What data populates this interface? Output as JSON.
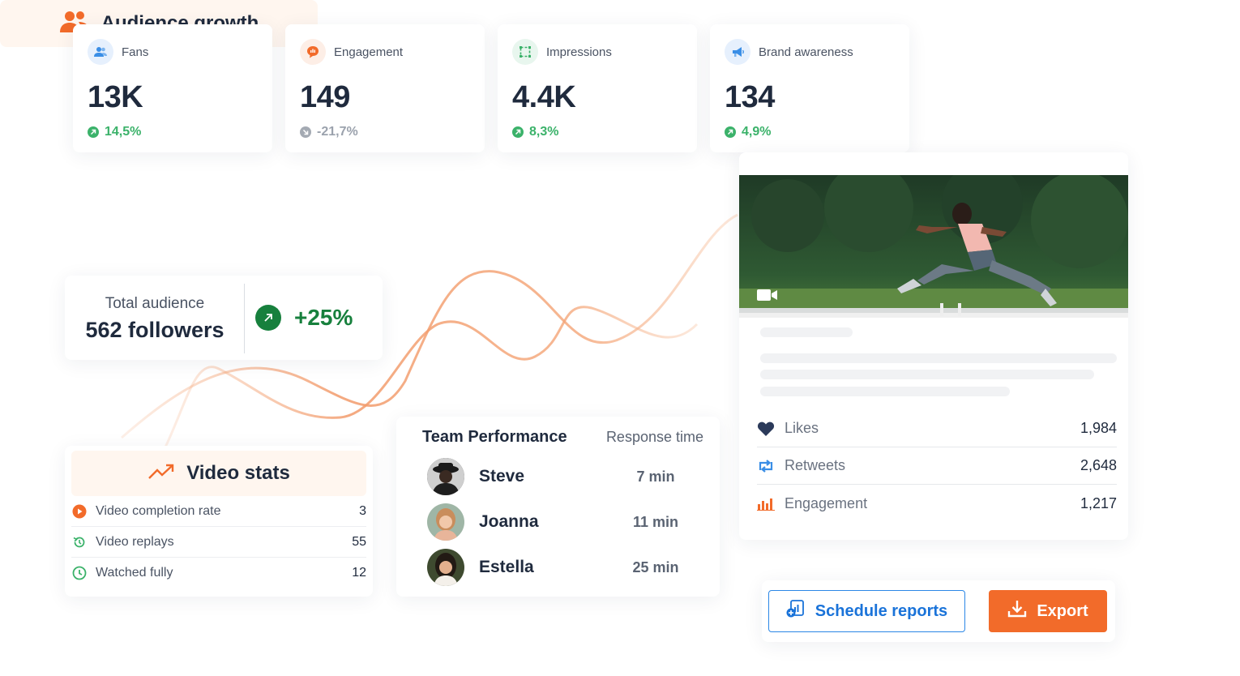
{
  "metrics": [
    {
      "label": "Fans",
      "value": "13K",
      "change": "14,5%",
      "trend": "up",
      "icon": "users-icon",
      "icon_bg": "#e6f0fd",
      "icon_color": "#3a8ee6"
    },
    {
      "label": "Engagement",
      "value": "149",
      "change": "-21,7%",
      "trend": "down",
      "icon": "chat-bubble-icon",
      "icon_bg": "#fdeee6",
      "icon_color": "#f26b2a"
    },
    {
      "label": "Impressions",
      "value": "4.4K",
      "change": "8,3%",
      "trend": "up",
      "icon": "frame-icon",
      "icon_bg": "#e8f6ee",
      "icon_color": "#3bb26a"
    },
    {
      "label": "Brand awareness",
      "value": "134",
      "change": "4,9%",
      "trend": "up",
      "icon": "megaphone-icon",
      "icon_bg": "#e6f0fd",
      "icon_color": "#3a8ee6"
    }
  ],
  "audience": {
    "title": "Audience growth",
    "total_label": "Total audience",
    "total_value": "562 followers",
    "growth": "+25%"
  },
  "video_stats": {
    "title": "Video stats",
    "rows": [
      {
        "label": "Video completion rate",
        "value": "3",
        "icon": "play-circle-icon"
      },
      {
        "label": "Video replays",
        "value": "55",
        "icon": "replay-icon"
      },
      {
        "label": "Watched fully",
        "value": "12",
        "icon": "clock-icon"
      }
    ]
  },
  "team": {
    "title": "Team Performance",
    "subtitle": "Response time",
    "members": [
      {
        "name": "Steve",
        "time": "7 min"
      },
      {
        "name": "Joanna",
        "time": "11 min"
      },
      {
        "name": "Estella",
        "time": "25 min"
      }
    ]
  },
  "post": {
    "stats": [
      {
        "label": "Likes",
        "value": "1,984",
        "icon": "heart-icon"
      },
      {
        "label": "Retweets",
        "value": "2,648",
        "icon": "retweet-icon"
      },
      {
        "label": "Engagement",
        "value": "1,217",
        "icon": "bar-chart-icon"
      }
    ]
  },
  "actions": {
    "schedule_label": "Schedule reports",
    "export_label": "Export"
  },
  "colors": {
    "accent_orange": "#f26b2a",
    "accent_blue": "#1a73d9",
    "positive_green": "#3bb26a",
    "dark_green": "#17803d",
    "text_dark": "#1f2a3d"
  }
}
